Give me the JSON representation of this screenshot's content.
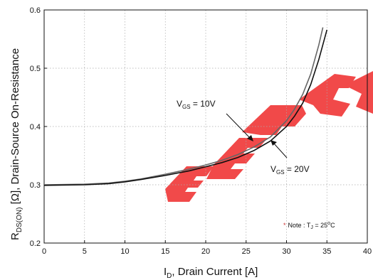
{
  "chart_data": {
    "type": "line",
    "title": "",
    "xlabel": "I_D, Drain Current [A]",
    "ylabel": "R_DS(ON) [Ω], Drain-Source On-Resistance",
    "xlim": [
      0,
      40
    ],
    "ylim": [
      0.2,
      0.6
    ],
    "xticks": [
      "0",
      "5",
      "10",
      "15",
      "20",
      "25",
      "30",
      "35",
      "40"
    ],
    "yticks": [
      "0.2",
      "0.3",
      "0.4",
      "0.5",
      "0.6"
    ],
    "grid": "dotted",
    "series": [
      {
        "name": "V_GS = 10V",
        "color": "#666666",
        "x": [
          0,
          5,
          8,
          10,
          12,
          15,
          18,
          20,
          22,
          24,
          26,
          28,
          30,
          31,
          32,
          33,
          34,
          34.5
        ],
        "y": [
          0.3,
          0.301,
          0.303,
          0.306,
          0.31,
          0.318,
          0.327,
          0.334,
          0.342,
          0.352,
          0.365,
          0.382,
          0.41,
          0.43,
          0.455,
          0.49,
          0.54,
          0.57
        ]
      },
      {
        "name": "V_GS = 20V",
        "color": "#111111",
        "x": [
          0,
          5,
          8,
          10,
          12,
          15,
          18,
          20,
          22,
          24,
          26,
          28,
          30,
          31,
          32,
          33,
          34,
          35
        ],
        "y": [
          0.299,
          0.3,
          0.302,
          0.305,
          0.309,
          0.316,
          0.324,
          0.331,
          0.338,
          0.347,
          0.359,
          0.375,
          0.4,
          0.418,
          0.44,
          0.472,
          0.515,
          0.566
        ]
      }
    ],
    "annotations": {
      "vgs10": {
        "prefix": "V",
        "sub": "GS",
        "suffix": " = 10V",
        "x": 25.8,
        "y": 0.392
      },
      "vgs20": {
        "prefix": "V",
        "sub": "GS",
        "suffix": " = 20V",
        "x": 27.6,
        "y": 0.372
      },
      "note": {
        "star": "*",
        "text": "Note : T",
        "sub": "J",
        "eq": " = 25",
        "sup": "o",
        "unit": "C"
      }
    },
    "watermark": "EEPW"
  }
}
